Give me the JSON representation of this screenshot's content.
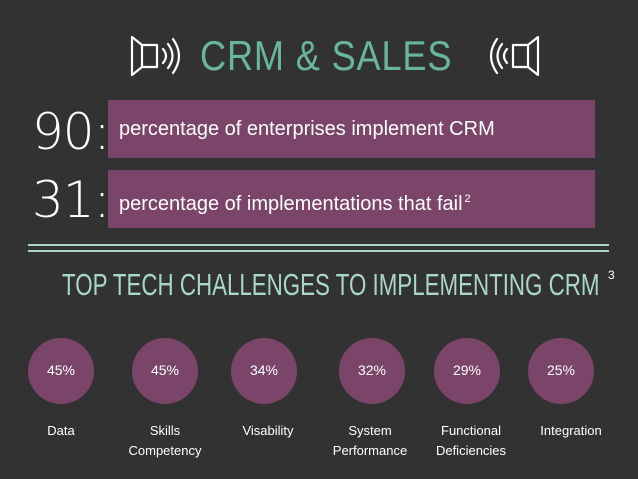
{
  "title": "CRM & SALES",
  "icons": {
    "left": "megaphone-icon",
    "right": "megaphone-icon"
  },
  "stats": [
    {
      "number": "90:",
      "text": "percentage of enterprises implement CRM",
      "footnote": ""
    },
    {
      "number": "31:",
      "text": "percentage of implementations that fail",
      "footnote": "2"
    }
  ],
  "heading": {
    "text": "TOP TECH CHALLENGES TO IMPLEMENTING CRM",
    "footnote": "3"
  },
  "challenges": [
    {
      "percent": "45%",
      "label": "Data"
    },
    {
      "percent": "45%",
      "label": "Skills\nCompetency"
    },
    {
      "percent": "34%",
      "label": "Visability"
    },
    {
      "percent": "32%",
      "label": "System\nPerformance"
    },
    {
      "percent": "29%",
      "label": "Functional\nDeficiencies"
    },
    {
      "percent": "25%",
      "label": "Integration"
    }
  ],
  "colors": {
    "background": "#323232",
    "accent_teal": "#68b6a0",
    "bar_purple": "#7a4568",
    "light_teal": "#a8d8cb"
  }
}
